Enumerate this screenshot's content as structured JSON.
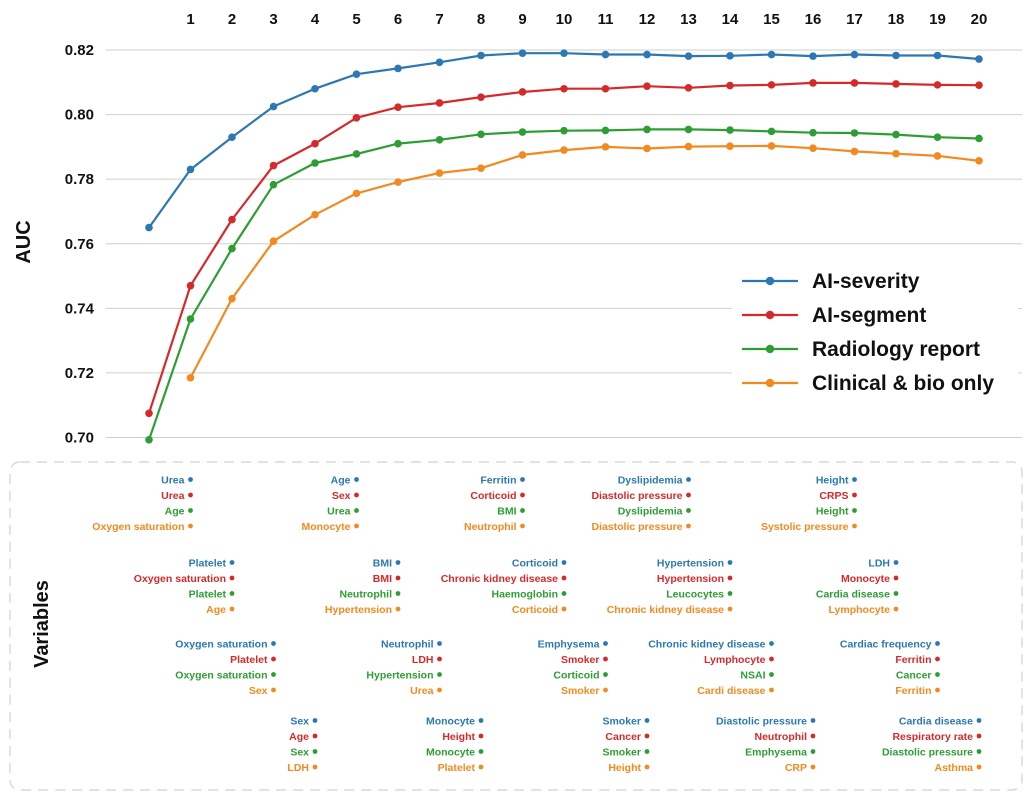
{
  "chart_data": {
    "type": "line",
    "ylabel": "AUC",
    "section_label": "Variables",
    "ylim": [
      0.7,
      0.82
    ],
    "y_ticks": [
      "0.70",
      "0.72",
      "0.74",
      "0.76",
      "0.78",
      "0.80",
      "0.82"
    ],
    "x": [
      1,
      2,
      3,
      4,
      5,
      6,
      7,
      8,
      9,
      10,
      11,
      12,
      13,
      14,
      15,
      16,
      17,
      18,
      19,
      20
    ],
    "x_ticks": [
      "1",
      "2",
      "3",
      "4",
      "5",
      "6",
      "7",
      "8",
      "9",
      "10",
      "11",
      "12",
      "13",
      "14",
      "15",
      "16",
      "17",
      "18",
      "19",
      "20"
    ],
    "grid": true,
    "legend_position": "right",
    "series": [
      {
        "name": "AI-severity",
        "color": "#2b78b4",
        "points": [
          [
            0,
            0.765
          ],
          [
            1,
            0.783
          ],
          [
            2,
            0.793
          ],
          [
            3,
            0.8025
          ],
          [
            4,
            0.808
          ],
          [
            5,
            0.8125
          ],
          [
            6,
            0.8143
          ],
          [
            7,
            0.8162
          ],
          [
            8,
            0.8183
          ],
          [
            9,
            0.819
          ],
          [
            10,
            0.819
          ],
          [
            11,
            0.8186
          ],
          [
            12,
            0.8186
          ],
          [
            13,
            0.8181
          ],
          [
            14,
            0.8182
          ],
          [
            15,
            0.8186
          ],
          [
            16,
            0.8181
          ],
          [
            17,
            0.8186
          ],
          [
            18,
            0.8183
          ],
          [
            19,
            0.8183
          ],
          [
            20,
            0.8172
          ]
        ]
      },
      {
        "name": "AI-segment",
        "color": "#d62a2a",
        "points": [
          [
            0,
            0.7075
          ],
          [
            1,
            0.747
          ],
          [
            2,
            0.7675
          ],
          [
            3,
            0.7842
          ],
          [
            4,
            0.791
          ],
          [
            5,
            0.799
          ],
          [
            6,
            0.8023
          ],
          [
            7,
            0.8036
          ],
          [
            8,
            0.8054
          ],
          [
            9,
            0.807
          ],
          [
            10,
            0.808
          ],
          [
            11,
            0.808
          ],
          [
            12,
            0.8088
          ],
          [
            13,
            0.8083
          ],
          [
            14,
            0.809
          ],
          [
            15,
            0.8092
          ],
          [
            16,
            0.8098
          ],
          [
            17,
            0.8098
          ],
          [
            18,
            0.8095
          ],
          [
            19,
            0.8092
          ],
          [
            20,
            0.8091
          ]
        ]
      },
      {
        "name": "Radiology report",
        "color": "#2e9e34",
        "points": [
          [
            0,
            0.6993
          ],
          [
            1,
            0.7367
          ],
          [
            2,
            0.7585
          ],
          [
            3,
            0.7783
          ],
          [
            4,
            0.785
          ],
          [
            5,
            0.7878
          ],
          [
            6,
            0.791
          ],
          [
            7,
            0.7922
          ],
          [
            8,
            0.7939
          ],
          [
            9,
            0.7946
          ],
          [
            10,
            0.795
          ],
          [
            11,
            0.7951
          ],
          [
            12,
            0.7954
          ],
          [
            13,
            0.7954
          ],
          [
            14,
            0.7952
          ],
          [
            15,
            0.7948
          ],
          [
            16,
            0.7944
          ],
          [
            17,
            0.7943
          ],
          [
            18,
            0.7938
          ],
          [
            19,
            0.793
          ],
          [
            20,
            0.7926
          ]
        ]
      },
      {
        "name": "Clinical & bio only",
        "color": "#f28a20",
        "points": [
          [
            1,
            0.7185
          ],
          [
            2,
            0.743
          ],
          [
            3,
            0.7608
          ],
          [
            4,
            0.769
          ],
          [
            5,
            0.7756
          ],
          [
            6,
            0.7791
          ],
          [
            7,
            0.7819
          ],
          [
            8,
            0.7834
          ],
          [
            9,
            0.7875
          ],
          [
            10,
            0.789
          ],
          [
            11,
            0.79
          ],
          [
            12,
            0.7895
          ],
          [
            13,
            0.7901
          ],
          [
            14,
            0.7902
          ],
          [
            15,
            0.7903
          ],
          [
            16,
            0.7896
          ],
          [
            17,
            0.7886
          ],
          [
            18,
            0.7879
          ],
          [
            19,
            0.7872
          ],
          [
            20,
            0.7857
          ]
        ]
      }
    ],
    "variables": [
      {
        "step": 1,
        "labels": [
          "Urea",
          "Urea",
          "Age",
          "Oxygen saturation"
        ]
      },
      {
        "step": 2,
        "labels": [
          "Platelet",
          "Oxygen saturation",
          "Platelet",
          "Age"
        ]
      },
      {
        "step": 3,
        "labels": [
          "Oxygen saturation",
          "Platelet",
          "Oxygen saturation",
          "Sex"
        ]
      },
      {
        "step": 4,
        "labels": [
          "Sex",
          "Age",
          "Sex",
          "LDH"
        ]
      },
      {
        "step": 5,
        "labels": [
          "Age",
          "Sex",
          "Urea",
          "Monocyte"
        ]
      },
      {
        "step": 6,
        "labels": [
          "BMI",
          "BMI",
          "Neutrophil",
          "Hypertension"
        ]
      },
      {
        "step": 7,
        "labels": [
          "Neutrophil",
          "LDH",
          "Hypertension",
          "Urea"
        ]
      },
      {
        "step": 8,
        "labels": [
          "Monocyte",
          "Height",
          "Monocyte",
          "Platelet"
        ]
      },
      {
        "step": 9,
        "labels": [
          "Ferritin",
          "Corticoid",
          "BMI",
          "Neutrophil"
        ]
      },
      {
        "step": 10,
        "labels": [
          "Corticoid",
          "Chronic kidney disease",
          "Haemoglobin",
          "Corticoid"
        ]
      },
      {
        "step": 11,
        "labels": [
          "Emphysema",
          "Smoker",
          "Corticoid",
          "Smoker"
        ]
      },
      {
        "step": 12,
        "labels": [
          "Smoker",
          "Cancer",
          "Smoker",
          "Height"
        ]
      },
      {
        "step": 13,
        "labels": [
          "Dyslipidemia",
          "Diastolic pressure",
          "Dyslipidemia",
          "Diastolic pressure"
        ]
      },
      {
        "step": 14,
        "labels": [
          "Hypertension",
          "Hypertension",
          "Leucocytes",
          "Chronic kidney disease"
        ]
      },
      {
        "step": 15,
        "labels": [
          "Chronic kidney disease",
          "Lymphocyte",
          "NSAI",
          "Cardi disease"
        ]
      },
      {
        "step": 16,
        "labels": [
          "Diastolic pressure",
          "Neutrophil",
          "Emphysema",
          "CRP"
        ]
      },
      {
        "step": 17,
        "labels": [
          "Height",
          "CRPS",
          "Height",
          "Systolic pressure"
        ]
      },
      {
        "step": 18,
        "labels": [
          "LDH",
          "Monocyte",
          "Cardia disease",
          "Lymphocyte"
        ]
      },
      {
        "step": 19,
        "labels": [
          "Cardiac frequency",
          "Ferritin",
          "Cancer",
          "Ferritin"
        ]
      },
      {
        "step": 20,
        "labels": [
          "Cardia disease",
          "Respiratory rate",
          "Diastolic pressure",
          "Asthma"
        ]
      }
    ]
  }
}
